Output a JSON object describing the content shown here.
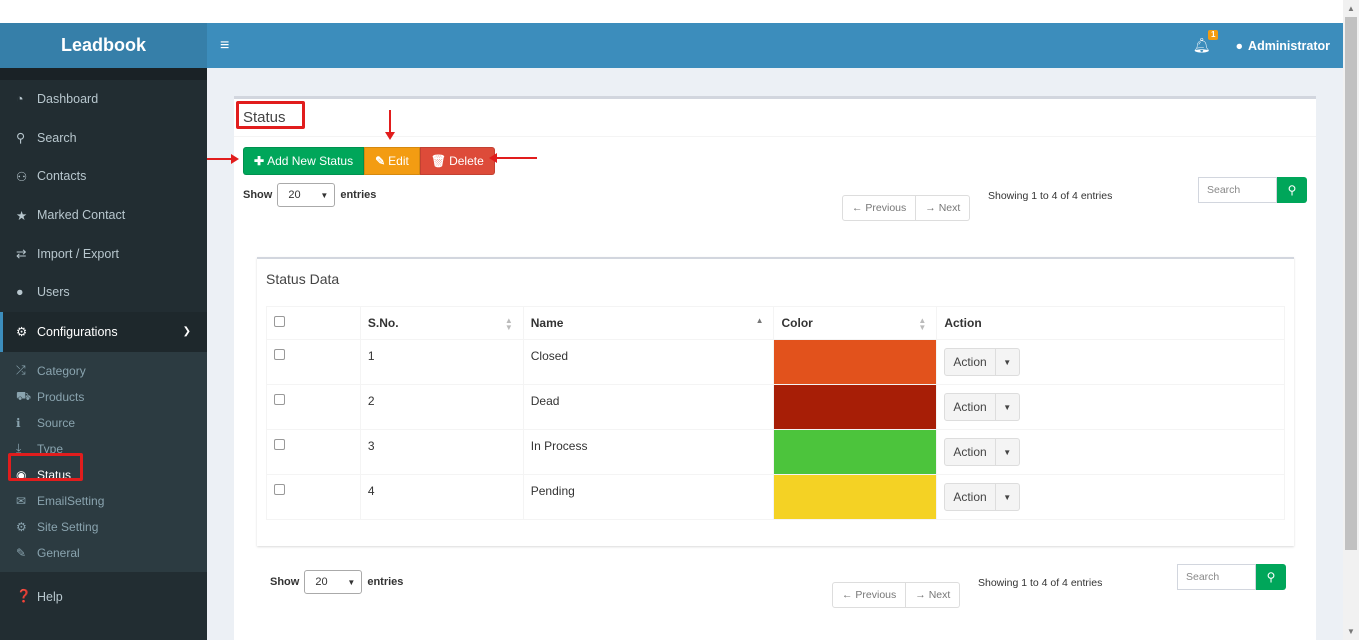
{
  "app": {
    "name": "Leadbook"
  },
  "sidebar": {
    "items": [
      {
        "label": "Dashboard",
        "icon": "dashboard-icon"
      },
      {
        "label": "Search",
        "icon": "search-icon"
      },
      {
        "label": "Contacts",
        "icon": "users-icon"
      },
      {
        "label": "Marked Contact",
        "icon": "star-icon"
      },
      {
        "label": "Import / Export",
        "icon": "exchange-icon"
      },
      {
        "label": "Users",
        "icon": "user-icon"
      }
    ],
    "configurations": {
      "label": "Configurations",
      "icon": "gears-icon",
      "subitems": [
        {
          "label": "Category",
          "icon": "random-icon"
        },
        {
          "label": "Products",
          "icon": "cart-icon"
        },
        {
          "label": "Source",
          "icon": "info-icon"
        },
        {
          "label": "Type",
          "icon": "download-icon"
        },
        {
          "label": "Status",
          "icon": "eye-icon"
        },
        {
          "label": "EmailSetting",
          "icon": "envelope-icon"
        },
        {
          "label": "Site Setting",
          "icon": "gear-icon"
        },
        {
          "label": "General",
          "icon": "wrench-icon"
        }
      ]
    },
    "help": {
      "label": "Help",
      "icon": "question-icon"
    }
  },
  "header": {
    "notifications_count": "1",
    "user": "Administrator"
  },
  "main": {
    "title": "Status",
    "buttons": {
      "add": "Add New Status",
      "edit": "Edit",
      "delete": "Delete"
    },
    "show_label": "Show",
    "entries_label": "entries",
    "page_size": "20",
    "pager": {
      "previous": "← Previous",
      "next": "→ Next"
    },
    "info": "Showing 1 to 4 of 4 entries",
    "search_placeholder": "Search"
  },
  "table": {
    "title": "Status Data",
    "columns": [
      "S.No.",
      "Name",
      "Color",
      "Action"
    ],
    "rows": [
      {
        "sno": "1",
        "name": "Closed",
        "color": "#e2521c",
        "action": "Action"
      },
      {
        "sno": "2",
        "name": "Dead",
        "color": "#a71e06",
        "action": "Action"
      },
      {
        "sno": "3",
        "name": "In Process",
        "color": "#4cc43c",
        "action": "Action"
      },
      {
        "sno": "4",
        "name": "Pending",
        "color": "#f4d224",
        "action": "Action"
      }
    ]
  },
  "footer_controls": {
    "show_label": "Show",
    "entries_label": "entries",
    "page_size": "20",
    "pager": {
      "previous": "← Previous",
      "next": "→ Next"
    },
    "info": "Showing 1 to 4 of 4 entries",
    "search_placeholder": "Search"
  }
}
